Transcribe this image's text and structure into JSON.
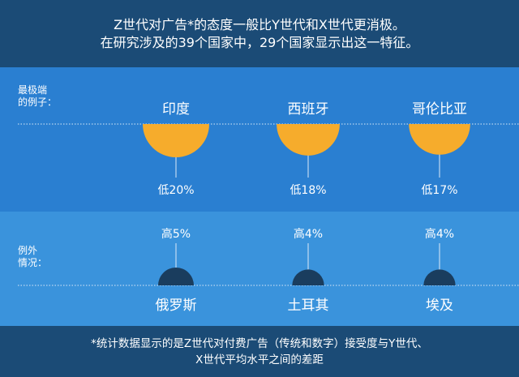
{
  "header": {
    "line1": "Z世代对广告*的态度一般比Y世代和X世代更消极。",
    "line2": "在研究涉及的39个国家中，29个国家显示出这一特征。"
  },
  "sections": {
    "extreme_label": [
      "最极端",
      "的例子："
    ],
    "exception_label": [
      "例外",
      "情况："
    ]
  },
  "chart_data": [
    {
      "type": "bar",
      "categories": [
        "印度",
        "西班牙",
        "哥伦比亚"
      ],
      "values": [
        -20,
        -18,
        -17
      ],
      "value_labels": [
        "低20%",
        "低18%",
        "低17%"
      ],
      "unit": "%",
      "colors": {
        "marks": "#f6ac2c"
      }
    },
    {
      "type": "bar",
      "categories": [
        "俄罗斯",
        "土耳其",
        "埃及"
      ],
      "values": [
        5,
        4,
        4
      ],
      "value_labels": [
        "高5%",
        "高4%",
        "高4%"
      ],
      "unit": "%",
      "colors": {
        "marks": "#1a3d5e"
      }
    }
  ],
  "footer": {
    "line1": "*统计数据显示的是Z世代对付费广告（传统和数字）接受度与Y世代、",
    "line2": "X世代平均水平之间的差距"
  }
}
